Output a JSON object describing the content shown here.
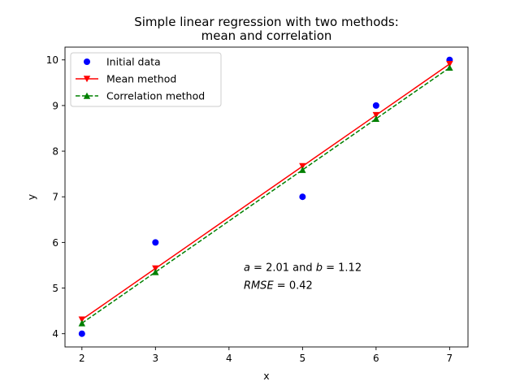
{
  "chart_data": {
    "type": "scatter",
    "title": [
      "Simple linear regression with two methods:",
      "mean and correlation"
    ],
    "xlabel": "x",
    "ylabel": "y",
    "xlim": [
      1.77,
      7.25
    ],
    "ylim": [
      3.71,
      10.28
    ],
    "xticks": [
      2,
      3,
      4,
      5,
      6,
      7
    ],
    "yticks": [
      4,
      5,
      6,
      7,
      8,
      9,
      10
    ],
    "grid": false,
    "legend_position": "upper-left",
    "series": [
      {
        "name": "Initial data",
        "style": "points",
        "marker": "circle",
        "color": "#0000ff",
        "x": [
          2,
          3,
          5,
          6,
          7
        ],
        "y": [
          4,
          6,
          7,
          9,
          10
        ]
      },
      {
        "name": "Mean method",
        "style": "line",
        "marker": "triangle-down",
        "color": "#ff0000",
        "x": [
          2,
          3,
          5,
          6,
          7
        ],
        "y": [
          4.31,
          5.43,
          7.67,
          8.79,
          9.91
        ]
      },
      {
        "name": "Correlation method",
        "style": "dashed",
        "marker": "triangle-up",
        "color": "#008000",
        "x": [
          2,
          3,
          5,
          6,
          7
        ],
        "y": [
          4.23,
          5.35,
          7.59,
          8.71,
          9.83
        ]
      }
    ],
    "annotations": [
      {
        "parts": [
          [
            "a",
            "italic"
          ],
          [
            " = 2.01 and ",
            "normal"
          ],
          [
            "b",
            "italic"
          ],
          [
            " = 1.12",
            "normal"
          ]
        ],
        "x": 4.2,
        "y": 5.45
      },
      {
        "parts": [
          [
            "RMSE",
            "italic"
          ],
          [
            " = 0.42",
            "normal"
          ]
        ],
        "x": 4.2,
        "y": 5.05
      }
    ]
  }
}
